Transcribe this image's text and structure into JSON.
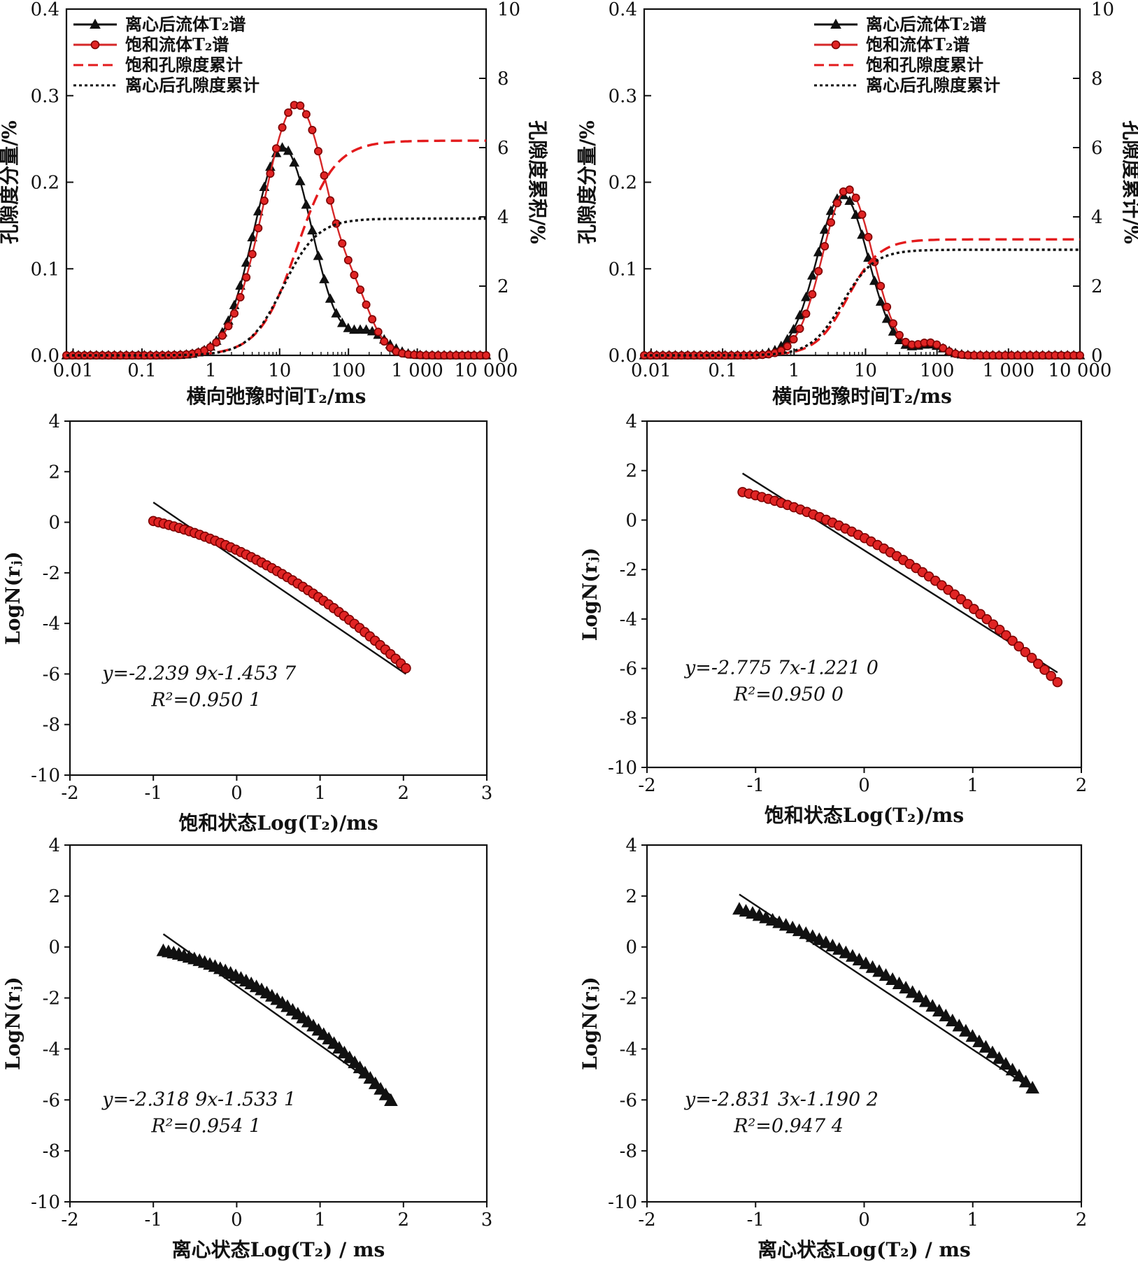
{
  "chart_data": [
    {
      "type": "line",
      "xscale": "log",
      "xlim": [
        0.008,
        10000
      ],
      "xticks": [
        "0.01",
        "0.1",
        "1",
        "10",
        "100",
        "1 000",
        "10 000"
      ],
      "ylim": [
        0,
        0.4
      ],
      "yticks": [
        "0.0",
        "0.1",
        "0.2",
        "0.3",
        "0.4"
      ],
      "y2lim": [
        0,
        10
      ],
      "y2ticks": [
        "0",
        "2",
        "4",
        "6",
        "8",
        "10"
      ],
      "xlabel": "横向弛豫时间T₂/ms",
      "ylabel": "孔隙度分量/%",
      "y2label": "孔隙度累积/%",
      "legend_position": "top-left",
      "series": [
        {
          "name": "离心后流体T₂谱",
          "axis": "left",
          "color": "#111111",
          "marker": "triangle",
          "log10_peak": 1.05,
          "peak": 0.24,
          "width": 0.42,
          "tail_log10": 2.3,
          "tail_height": 0.026,
          "tail_width": 0.25
        },
        {
          "name": "饱和流体T₂谱",
          "axis": "left",
          "color": "#d62728",
          "marker": "circle",
          "log10_peak": 1.25,
          "peak": 0.29,
          "width": 0.48,
          "tail_log10": 2.15,
          "tail_height": 0.03,
          "tail_width": 0.22
        },
        {
          "name": "饱和孔隙度累计",
          "axis": "right",
          "color": "#e31a1c",
          "dash": "dashed",
          "plateau": 6.2,
          "log10_mid": 1.25,
          "width": 0.5
        },
        {
          "name": "离心后孔隙度累计",
          "axis": "right",
          "color": "#111111",
          "dash": "dotted",
          "plateau": 3.95,
          "log10_mid": 1.05,
          "width": 0.45
        }
      ]
    },
    {
      "type": "line",
      "xscale": "log",
      "xlim": [
        0.008,
        10000
      ],
      "xticks": [
        "0.01",
        "0.1",
        "1",
        "10",
        "100",
        "1 000",
        "10 000"
      ],
      "ylim": [
        0,
        0.4
      ],
      "yticks": [
        "0.0",
        "0.1",
        "0.2",
        "0.3",
        "0.4"
      ],
      "y2lim": [
        0,
        10
      ],
      "y2ticks": [
        "0",
        "2",
        "4",
        "6",
        "8",
        "10"
      ],
      "xlabel": "横向弛豫时间T₂/ms",
      "ylabel": "孔隙度分量/%",
      "y2label": "孔隙度累计/%",
      "legend_position": "top-right",
      "series": [
        {
          "name": "离心后流体T₂谱",
          "axis": "left",
          "color": "#111111",
          "marker": "triangle",
          "log10_peak": 0.68,
          "peak": 0.185,
          "width": 0.36,
          "tail_log10": 1.9,
          "tail_height": 0.012,
          "tail_width": 0.2
        },
        {
          "name": "饱和流体T₂谱",
          "axis": "left",
          "color": "#d62728",
          "marker": "circle",
          "log10_peak": 0.75,
          "peak": 0.192,
          "width": 0.35,
          "tail_log10": 1.9,
          "tail_height": 0.014,
          "tail_width": 0.18
        },
        {
          "name": "饱和孔隙度累计",
          "axis": "right",
          "color": "#e31a1c",
          "dash": "dashed",
          "plateau": 3.35,
          "log10_mid": 0.75,
          "width": 0.4
        },
        {
          "name": "离心后孔隙度累计",
          "axis": "right",
          "color": "#111111",
          "dash": "dotted",
          "plateau": 3.05,
          "log10_mid": 0.68,
          "width": 0.4
        }
      ]
    },
    {
      "type": "scatter",
      "xlim": [
        -2,
        3
      ],
      "xticks": [
        "-2",
        "-1",
        "0",
        "1",
        "2",
        "3"
      ],
      "ylim": [
        -10,
        4
      ],
      "yticks": [
        "-10",
        "-8",
        "-6",
        "-4",
        "-2",
        "0",
        "2",
        "4"
      ],
      "xlabel": "饱和状态Log(T₂)/ms",
      "ylabel": "LogN(rⱼ)",
      "marker": "circle",
      "color": "#d62728",
      "x_start": -1.0,
      "x_end": 2.03,
      "n_points": 50,
      "curve": {
        "a": -1.1,
        "b": -1.53,
        "c": -0.38
      },
      "fit": {
        "slope": -2.2399,
        "intercept": -1.4537,
        "x_range": [
          -1.0,
          2.03
        ]
      },
      "equation": "y=-2.239 9x-1.453 7",
      "r2": "R²=0.950 1"
    },
    {
      "type": "scatter",
      "xlim": [
        -2,
        2
      ],
      "xticks": [
        "-2",
        "-1",
        "0",
        "1",
        "2"
      ],
      "ylim": [
        -10,
        4
      ],
      "yticks": [
        "-10",
        "-8",
        "-6",
        "-4",
        "-2",
        "0",
        "2",
        "4"
      ],
      "xlabel": "饱和状态Log(T₂)/ms",
      "ylabel": "LogN(rⱼ)",
      "marker": "circle",
      "color": "#d62728",
      "x_start": -1.12,
      "x_end": 1.78,
      "n_points": 50,
      "curve": {
        "a": -0.72,
        "b": -2.28,
        "c": -0.56
      },
      "fit": {
        "slope": -2.7757,
        "intercept": -1.221,
        "x_range": [
          -1.12,
          1.78
        ]
      },
      "equation": "y=-2.775 7x-1.221 0",
      "r2": "R²=0.950 0"
    },
    {
      "type": "scatter",
      "xlim": [
        -2,
        3
      ],
      "xticks": [
        "-2",
        "-1",
        "0",
        "1",
        "2",
        "3"
      ],
      "ylim": [
        -10,
        4
      ],
      "yticks": [
        "-10",
        "-8",
        "-6",
        "-4",
        "-2",
        "0",
        "2",
        "4"
      ],
      "xlabel": "离心状态Log(T₂) / ms",
      "ylabel": "LogN(rⱼ)",
      "marker": "triangle",
      "color": "#111111",
      "x_start": -0.88,
      "x_end": 1.85,
      "n_points": 45,
      "curve": {
        "a": -1.15,
        "b": -1.62,
        "c": -0.55
      },
      "fit": {
        "slope": -2.3189,
        "intercept": -1.5331,
        "x_range": [
          -0.88,
          1.85
        ]
      },
      "equation": "y=-2.318 9x-1.533 1",
      "r2": "R²=0.954 1"
    },
    {
      "type": "scatter",
      "xlim": [
        -2,
        2
      ],
      "xticks": [
        "-2",
        "-1",
        "0",
        "1",
        "2"
      ],
      "ylim": [
        -10,
        4
      ],
      "yticks": [
        "-10",
        "-8",
        "-6",
        "-4",
        "-2",
        "0",
        "2",
        "4"
      ],
      "xlabel": "离心状态Log(T₂) / ms",
      "ylabel": "LogN(rⱼ)",
      "marker": "triangle",
      "color": "#111111",
      "x_start": -1.15,
      "x_end": 1.55,
      "n_points": 45,
      "curve": {
        "a": -0.62,
        "b": -2.4,
        "c": -0.5
      },
      "fit": {
        "slope": -2.8313,
        "intercept": -1.1902,
        "x_range": [
          -1.15,
          1.55
        ]
      },
      "equation": "y=-2.831 3x-1.190 2",
      "r2": "R²=0.947 4"
    }
  ]
}
